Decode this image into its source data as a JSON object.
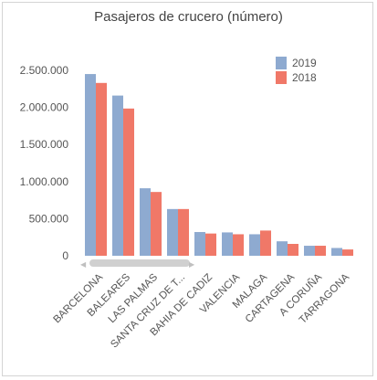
{
  "chart_data": {
    "type": "bar",
    "title": "Pasajeros de crucero (número)",
    "categories": [
      "BARCELONA",
      "BALEARES",
      "LAS PALMAS",
      "SANTA CRUZ DE T...",
      "BAHIA DE CADIZ",
      "VALENCIA",
      "MALAGA",
      "CARTAGENA",
      "A CORUÑA",
      "TARRAGONA"
    ],
    "series": [
      {
        "name": "2019",
        "color": "#8eaad0",
        "values": [
          2450000,
          2160000,
          910000,
          630000,
          320000,
          315000,
          290000,
          195000,
          135000,
          105000
        ]
      },
      {
        "name": "2018",
        "color": "#f07868",
        "values": [
          2330000,
          1985000,
          860000,
          630000,
          300000,
          290000,
          340000,
          160000,
          135000,
          85000
        ]
      }
    ],
    "yticks": [
      "2.500.000",
      "2.000.000",
      "1.500.000",
      "1.000.000",
      "500.000",
      "0"
    ],
    "ylim": [
      0,
      2500000
    ],
    "legend_position": "top-right",
    "grid": false
  },
  "scrollbar": {
    "left_arrow": "◀",
    "right_arrow": "▶"
  }
}
